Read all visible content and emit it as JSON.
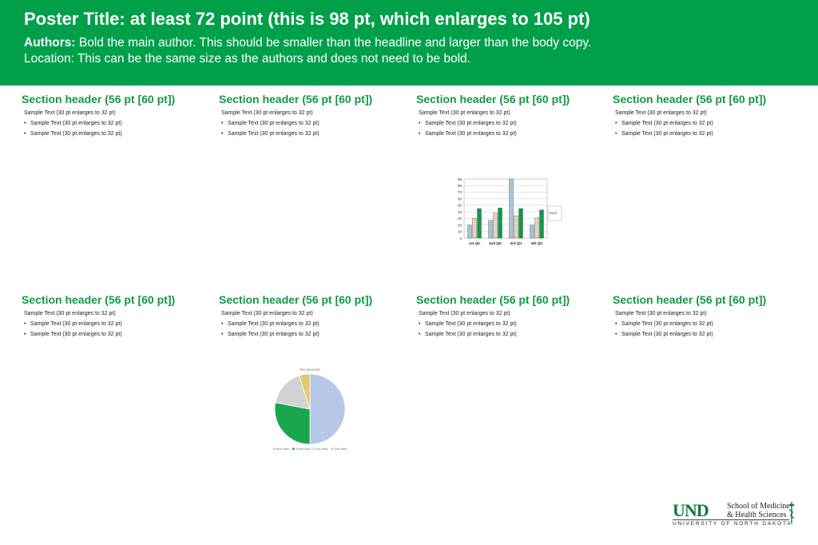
{
  "header": {
    "title": "Poster Title: at least 72 point (this is 98 pt, which enlarges to 105 pt)",
    "authors_label": "Authors:",
    "authors_text": " Bold the main author. This should be smaller than the headline and larger than the body copy.",
    "location": "Location: This can be the same size as the authors and does not need to be bold."
  },
  "sections": [
    {
      "header": "Section header (56 pt [60 pt])",
      "sample": "Sample Text (30 pt enlarges to 32 pt)",
      "bullets": [
        "Sample Text (30 pt enlarges to 32 pt)",
        "Sample Text (30 pt enlarges to 32 pt)"
      ]
    },
    {
      "header": "Section header (56 pt [60 pt])",
      "sample": "Sample Text (30 pt enlarges to 32 pt)",
      "bullets": [
        "Sample Text (30 pt enlarges to 32 pt)",
        "Sample Text (30 pt enlarges to 32 pt)"
      ]
    },
    {
      "header": "Section header (56 pt [60 pt])",
      "sample": "Sample Text (30 pt enlarges to 32 pt)",
      "bullets": [
        "Sample Text (30 pt enlarges to 32 pt)",
        "Sample Text (30 pt enlarges to 32 pt)"
      ]
    },
    {
      "header": "Section header (56 pt [60 pt])",
      "sample": "Sample Text (30 pt enlarges to 32 pt)",
      "bullets": [
        "Sample Text (30 pt enlarges to 32 pt)",
        "Sample Text (30 pt enlarges to 32 pt)"
      ]
    },
    {
      "header": "Section header (56 pt [60 pt])",
      "sample": "Sample Text (30 pt enlarges to 32 pt)",
      "bullets": [
        "Sample Text (30 pt enlarges to 32 pt)",
        "Sample Text (30 pt enlarges to 32 pt)"
      ]
    },
    {
      "header": "Section header (56 pt [60 pt])",
      "sample": "Sample Text (30 pt enlarges to 32 pt)",
      "bullets": [
        "Sample Text (30 pt enlarges to 32 pt)",
        "Sample Text (30 pt enlarges to 32 pt)"
      ]
    },
    {
      "header": "Section header (56 pt [60 pt])",
      "sample": "Sample Text (30 pt enlarges to 32 pt)",
      "bullets": [
        "Sample Text (30 pt enlarges to 32 pt)",
        "Sample Text (30 pt enlarges to 32 pt)"
      ]
    },
    {
      "header": "Section header (56 pt [60 pt])",
      "sample": "Sample Text (30 pt enlarges to 32 pt)",
      "bullets": [
        "Sample Text (30 pt enlarges to 32 pt)",
        "Sample Text (30 pt enlarges to 32 pt)"
      ]
    }
  ],
  "colors": {
    "header_bg": "#00a04a",
    "section_header": "#109a44",
    "bar_series": [
      "#a8c4d2",
      "#e6d2c2",
      "#0f9a48"
    ],
    "pie_slices": [
      "#b8c6e8",
      "#1aa64c",
      "#d2d2d2",
      "#e0c878"
    ]
  },
  "chart_data": [
    {
      "type": "bar",
      "categories": [
        "1st Qtr",
        "2nd Qtr",
        "3rd Qtr",
        "4th Qtr"
      ],
      "series": [
        {
          "name": "",
          "values": [
            20,
            27,
            90,
            20
          ]
        },
        {
          "name": "",
          "values": [
            30,
            38,
            34,
            31
          ]
        },
        {
          "name": "",
          "values": [
            45,
            46,
            45,
            43
          ]
        }
      ],
      "legend": [
        "Ecol"
      ],
      "legend_position": "right",
      "ylim": [
        0,
        90
      ],
      "yticks": [
        0,
        10,
        20,
        30,
        40,
        50,
        60,
        70,
        80,
        90
      ],
      "grid": true
    },
    {
      "type": "pie",
      "title": "Pie amounts",
      "labels": [
        "Blue data",
        "Green data",
        "Gray data",
        "Gold data"
      ],
      "values": [
        50,
        28,
        17,
        5
      ]
    }
  ],
  "logo": {
    "und": "UND",
    "school_line1": "School of Medicine",
    "school_line2": "& Health Sciences",
    "university": "UNIVERSITY OF NORTH DAKOTA"
  }
}
